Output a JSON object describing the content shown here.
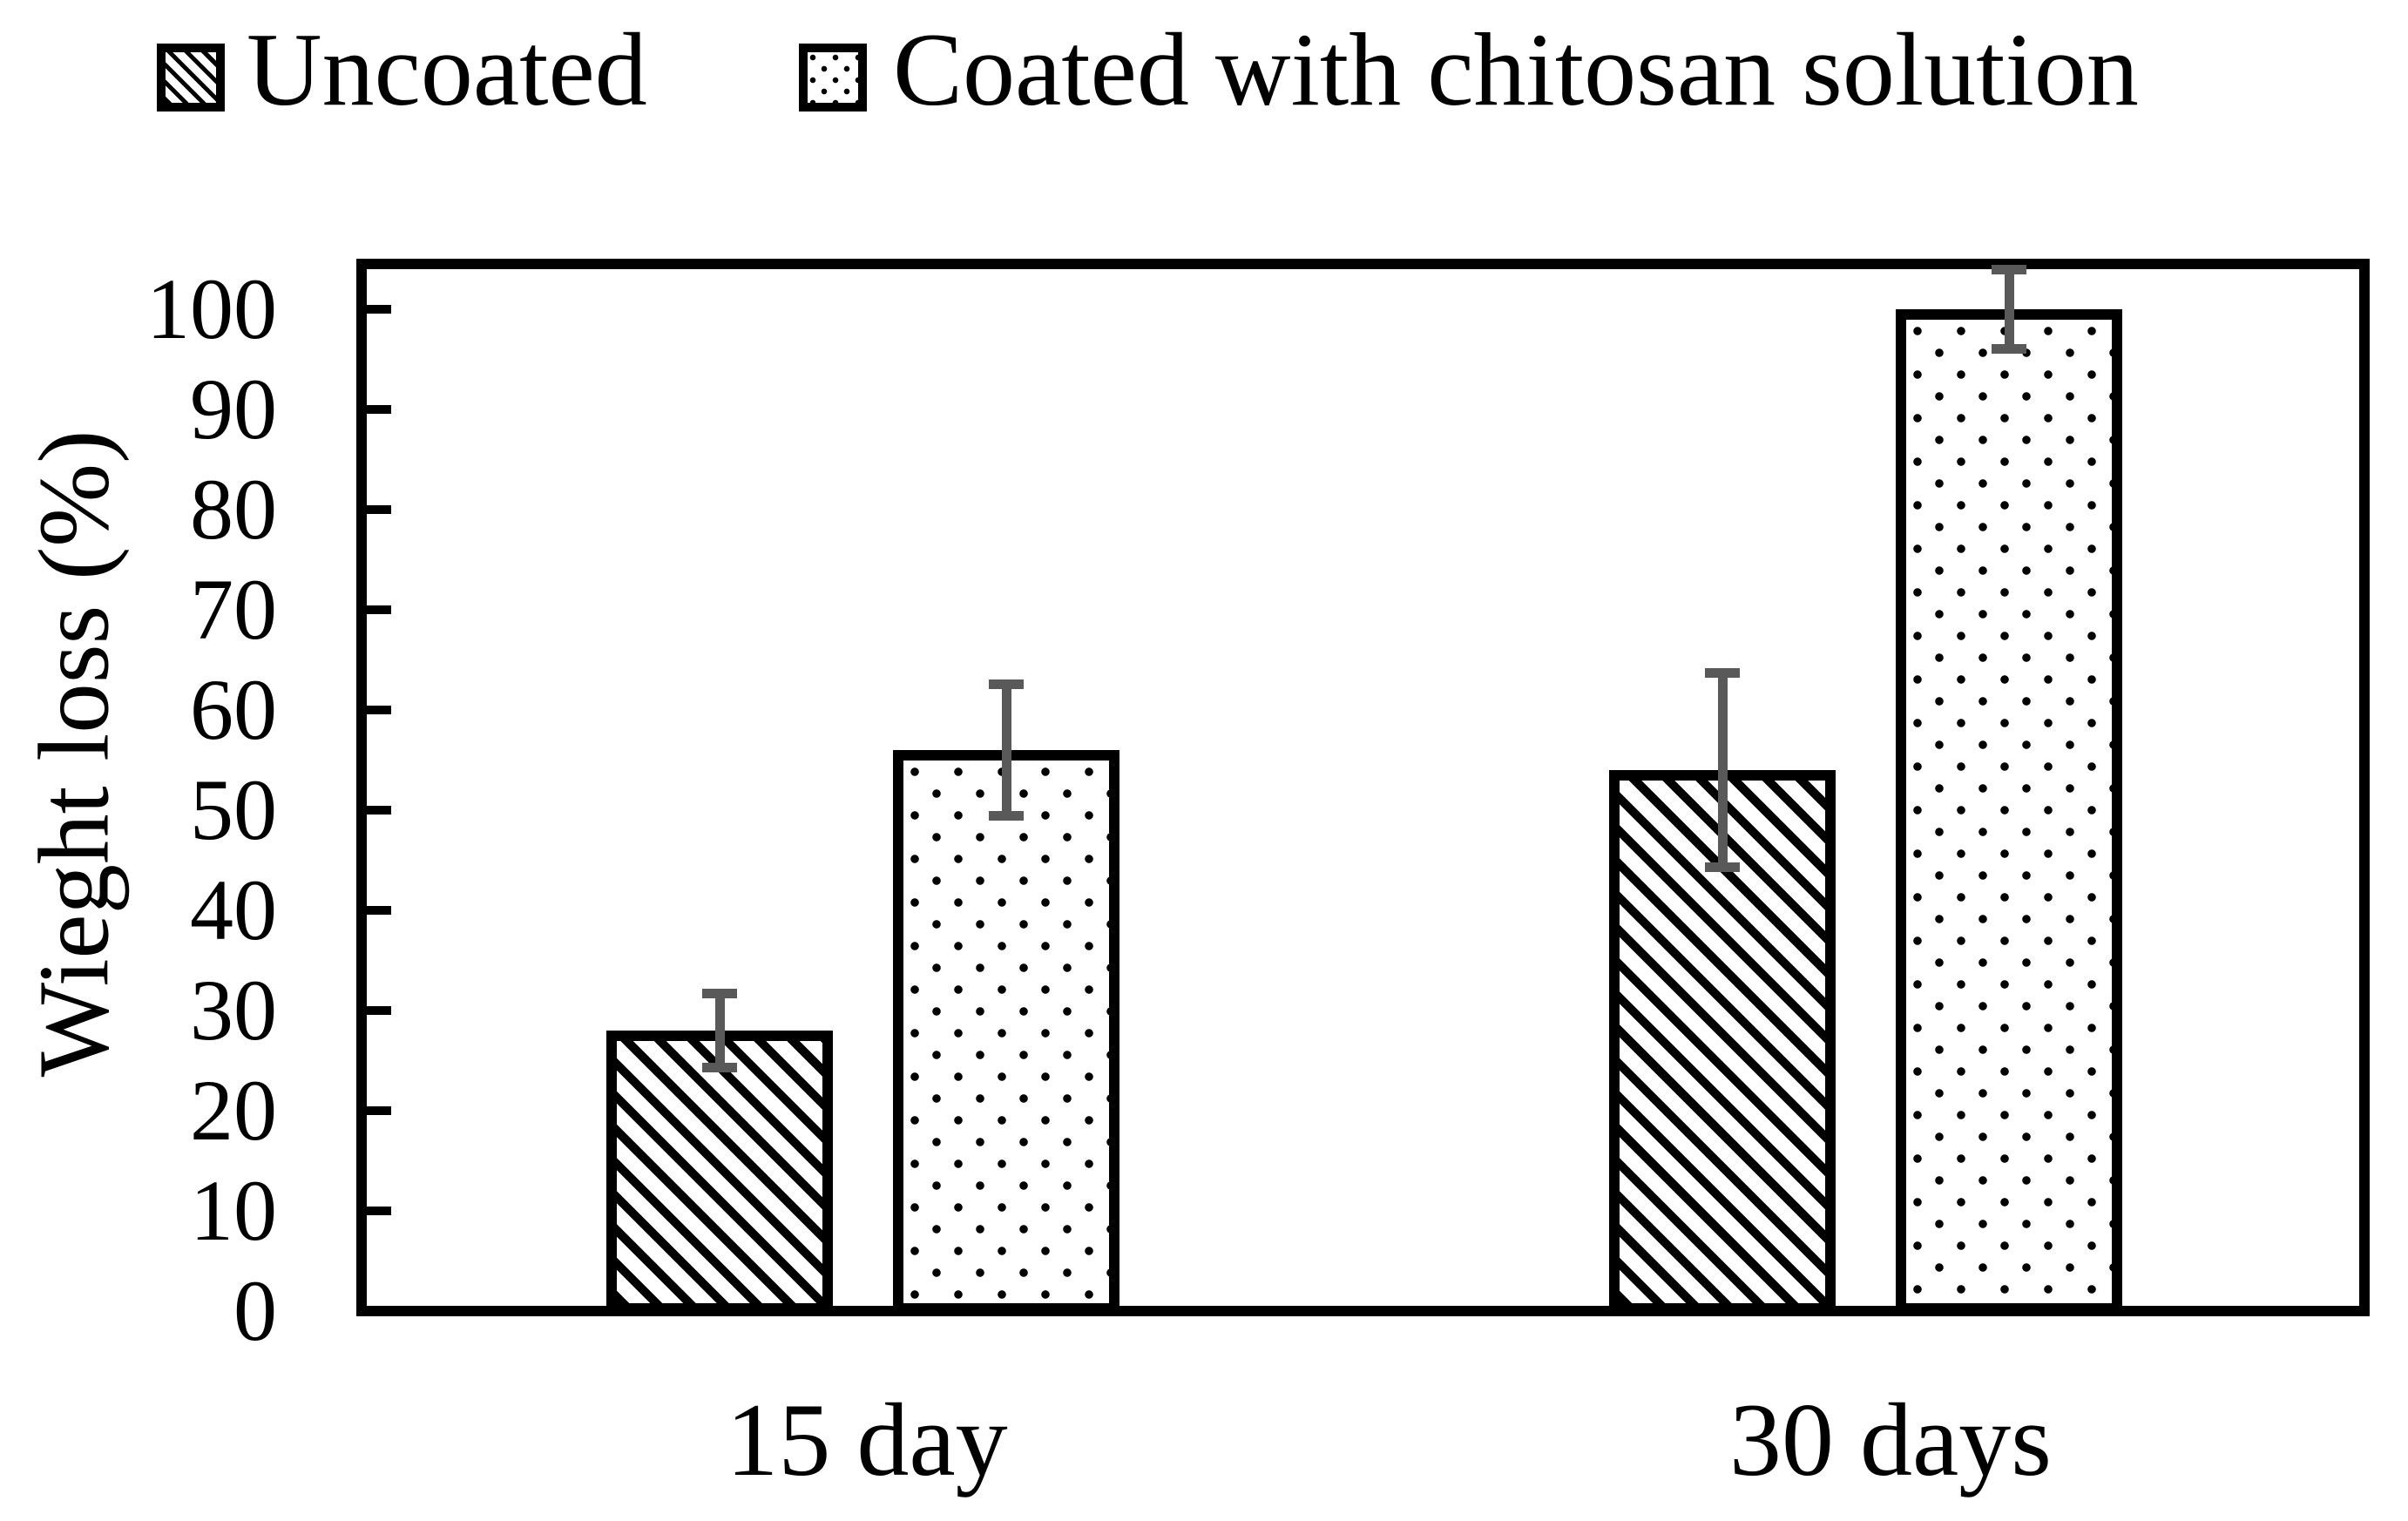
{
  "chart_data": {
    "type": "bar",
    "title": "",
    "categories": [
      "15 day",
      "30 days"
    ],
    "series": [
      {
        "name": "Uncoated",
        "pattern": "diagonal-hatch",
        "values": [
          28,
          54
        ],
        "errors": [
          3.7,
          9.7
        ]
      },
      {
        "name": "Coated with chitosan solution",
        "pattern": "dots",
        "values": [
          56,
          100
        ],
        "errors": [
          6.6,
          4
        ]
      }
    ],
    "xlabel": "",
    "ylabel": "Wieght loss (%)",
    "ylim": [
      0,
      100
    ],
    "yticks": [
      0,
      10,
      20,
      30,
      40,
      50,
      60,
      70,
      80,
      90,
      100
    ],
    "grid": false,
    "legend_position": "top",
    "error_bar_color": "#595959",
    "bar_fill_color": "#ffffff",
    "bar_border_color": "#000000"
  }
}
